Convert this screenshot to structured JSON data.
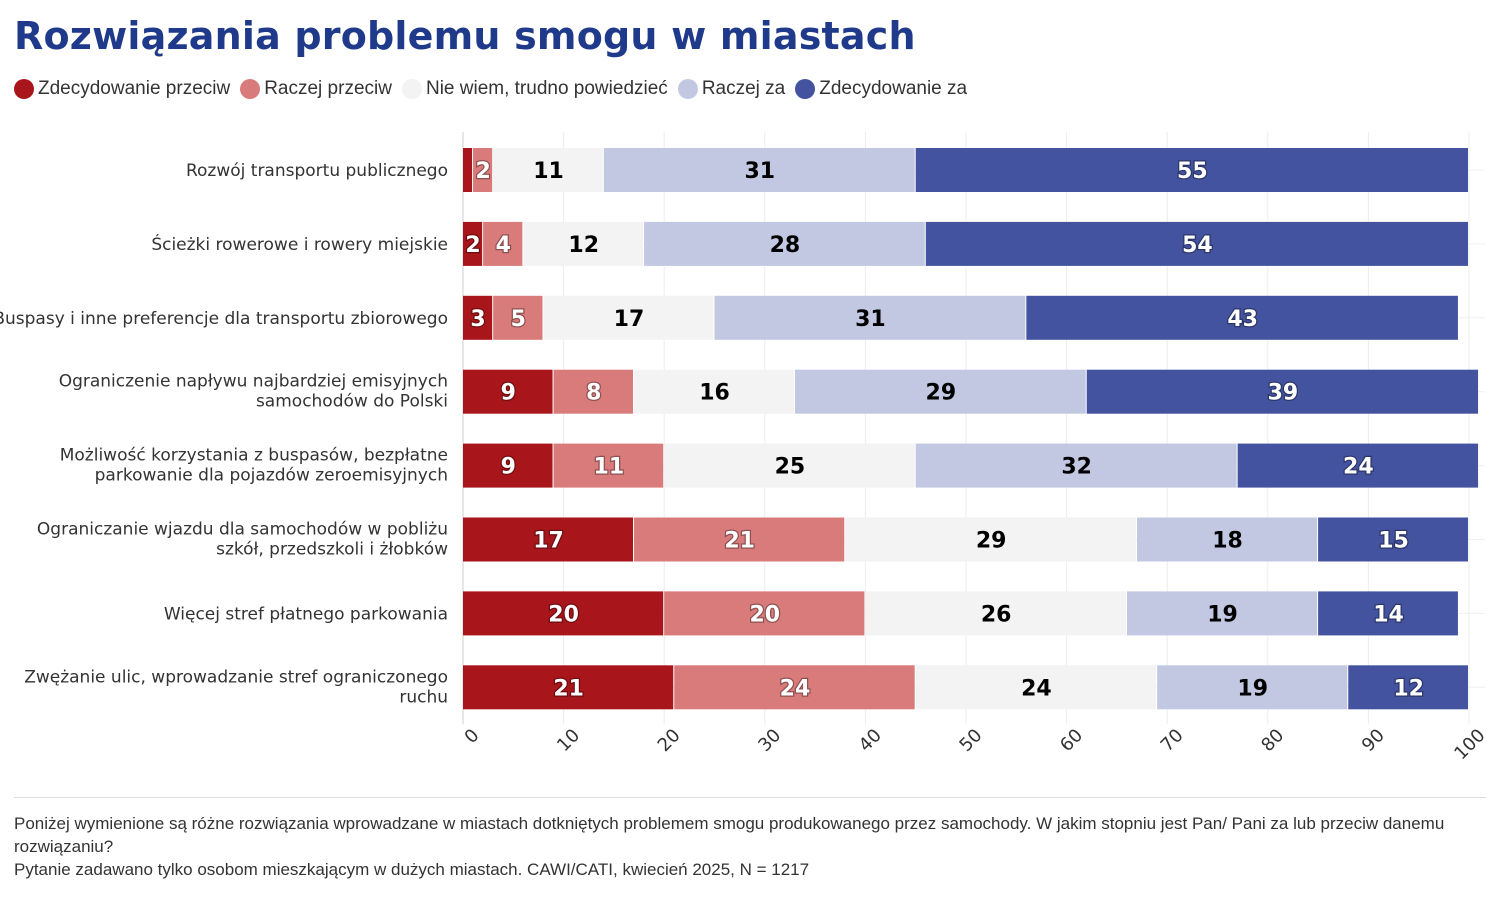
{
  "title": "Rozwiązania problemu smogu w miastach",
  "legend": [
    {
      "label": "Zdecydowanie przeciw",
      "color": "#a8151b"
    },
    {
      "label": "Raczej przeciw",
      "color": "#d97b7b"
    },
    {
      "label": "Nie wiem, trudno powiedzieć",
      "color": "#f3f3f3"
    },
    {
      "label": "Raczej za",
      "color": "#c3c8e2"
    },
    {
      "label": "Zdecydowanie za",
      "color": "#4353a0"
    }
  ],
  "chart_data": {
    "type": "bar",
    "orientation": "horizontal-stacked",
    "categories": [
      [
        "Rozwój transportu publicznego"
      ],
      [
        "Ścieżki rowerowe i rowery miejskie"
      ],
      [
        "Buspasy i inne preferencje dla transportu zbiorowego"
      ],
      [
        "Ograniczenie napływu najbardziej emisyjnych",
        "samochodów do Polski"
      ],
      [
        "Możliwość korzystania z buspasów, bezpłatne",
        "parkowanie dla pojazdów zeroemisyjnych"
      ],
      [
        "Ograniczanie wjazdu dla samochodów w pobliżu",
        "szkół, przedszkoli i żłobków"
      ],
      [
        "Więcej stref płatnego parkowania"
      ],
      [
        "Zwężanie ulic, wprowadzanie stref ograniczonego",
        "ruchu"
      ]
    ],
    "series": [
      {
        "name": "Zdecydowanie przeciw",
        "color": "#a8151b",
        "text_color": "#ffffff",
        "values": [
          1,
          2,
          3,
          9,
          9,
          17,
          20,
          21
        ],
        "labels": [
          "",
          "2",
          "3",
          "9",
          "9",
          "17",
          "20",
          "21"
        ]
      },
      {
        "name": "Raczej przeciw",
        "color": "#d97b7b",
        "text_color": "#ffffff",
        "values": [
          2,
          4,
          5,
          8,
          11,
          21,
          20,
          24
        ],
        "labels": [
          "2",
          "4",
          "5",
          "8",
          "11",
          "21",
          "20",
          "24"
        ]
      },
      {
        "name": "Nie wiem, trudno powiedzieć",
        "color": "#f3f3f3",
        "text_color": "#000000",
        "values": [
          11,
          12,
          17,
          16,
          25,
          29,
          26,
          24
        ],
        "labels": [
          "11",
          "12",
          "17",
          "16",
          "25",
          "29",
          "26",
          "24"
        ]
      },
      {
        "name": "Raczej za",
        "color": "#c3c8e2",
        "text_color": "#000000",
        "values": [
          31,
          28,
          31,
          29,
          32,
          18,
          19,
          19
        ],
        "labels": [
          "31",
          "28",
          "31",
          "29",
          "32",
          "18",
          "19",
          "19"
        ]
      },
      {
        "name": "Zdecydowanie za",
        "color": "#4353a0",
        "text_color": "#ffffff",
        "values": [
          55,
          54,
          43,
          39,
          24,
          15,
          14,
          12
        ],
        "labels": [
          "55",
          "54",
          "43",
          "39",
          "24",
          "15",
          "14",
          "12"
        ]
      }
    ],
    "x_ticks": [
      "0",
      "10",
      "20",
      "30",
      "40",
      "50",
      "60",
      "70",
      "80",
      "90",
      "100"
    ],
    "xlim": [
      0,
      100
    ],
    "xlabel": "",
    "ylabel": "",
    "grid": true,
    "legend_position": "top-left"
  },
  "footer": {
    "question": "Poniżej wymienione są różne rozwiązania wprowadzane w miastach dotkniętych problemem smogu produkowanego przez samochody. W jakim stopniu jest Pan/ Pani za lub przeciw danemu rozwiązaniu?",
    "note": "Pytanie zadawano tylko osobom mieszkającym w dużych miastach. CAWI/CATI, kwiecień 2025, N = 1217"
  }
}
